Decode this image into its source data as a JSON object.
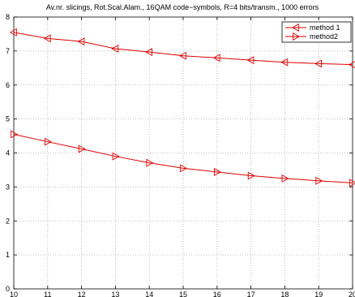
{
  "chart_data": {
    "type": "line",
    "title": "Av.nr. slicings, Rot.Scal.Alam., 16QAM code−symbols, R=4 bits/transm., 1000 errors",
    "xlabel": "",
    "ylabel": "",
    "x": [
      10,
      11,
      12,
      13,
      14,
      15,
      16,
      17,
      18,
      19,
      20
    ],
    "xlim": [
      10,
      20
    ],
    "ylim": [
      0,
      8
    ],
    "xticks": [
      "10",
      "11",
      "12",
      "13",
      "14",
      "15",
      "16",
      "17",
      "18",
      "19",
      "20"
    ],
    "yticks": [
      "0",
      "1",
      "2",
      "3",
      "4",
      "5",
      "6",
      "7",
      "8"
    ],
    "grid": true,
    "legend_position": "top-right",
    "series": [
      {
        "name": "method 1",
        "color": "#e00000",
        "marker": "triangle-left",
        "values": [
          7.55,
          7.37,
          7.28,
          7.07,
          6.97,
          6.86,
          6.8,
          6.73,
          6.67,
          6.63,
          6.6
        ]
      },
      {
        "name": "method2",
        "color": "#e00000",
        "marker": "triangle-right",
        "values": [
          4.55,
          4.33,
          4.12,
          3.9,
          3.71,
          3.55,
          3.44,
          3.33,
          3.25,
          3.18,
          3.12
        ]
      }
    ]
  }
}
